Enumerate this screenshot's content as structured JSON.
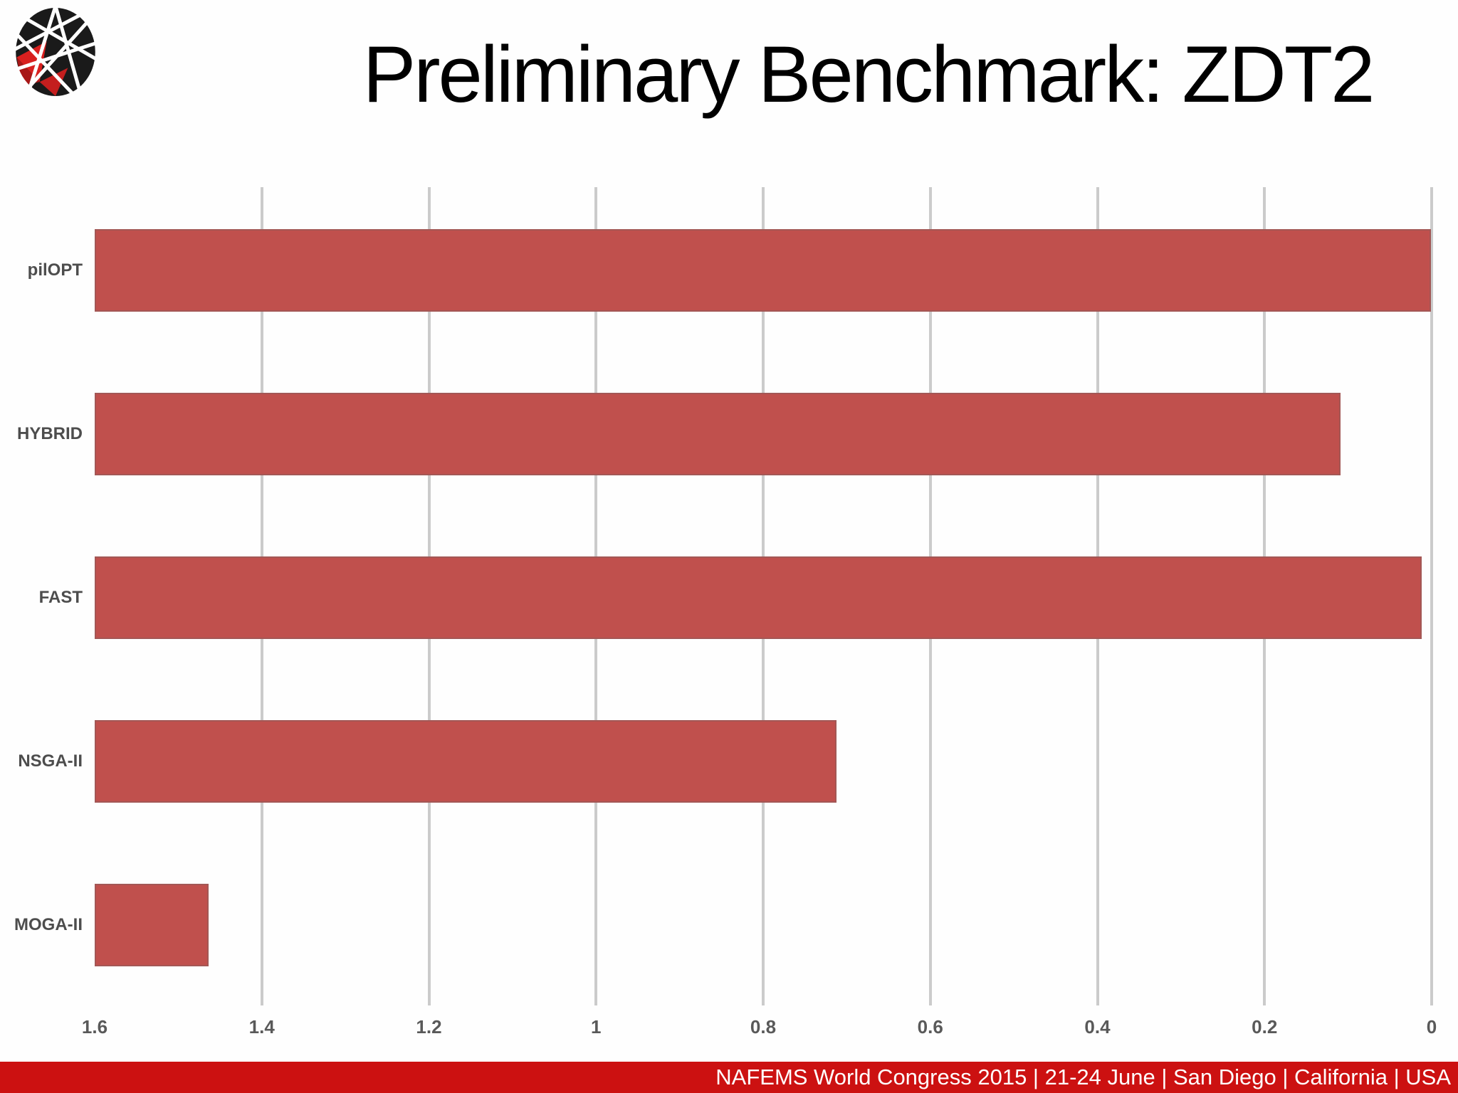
{
  "slide": {
    "title": "Preliminary Benchmark: ZDT2",
    "footer": "NAFEMS World Congress 2015  | 21-24 June | San Diego | California | USA",
    "logo": "esteco-sphere-logo"
  },
  "colors": {
    "bar": "#C0504D",
    "gridline": "#CBCBCB",
    "title_text": "#000000",
    "category_text": "#4D4D4D",
    "tick_text": "#595959",
    "footer_bg": "#CC1111",
    "footer_text": "#FFFFFF",
    "logo_black": "#1A1A1A",
    "logo_red": "#D8201F"
  },
  "chart_data": {
    "type": "bar",
    "orientation": "horizontal",
    "title": "",
    "xlabel": "",
    "ylabel": "",
    "grid": true,
    "legend": false,
    "categories": [
      "pilOPT",
      "HYBRID",
      "FAST",
      "NSGA-II",
      "MOGA-II"
    ],
    "values": [
      0.001,
      0.109,
      0.012,
      0.712,
      1.464
    ],
    "axis": {
      "min": 0,
      "max": 1.6,
      "reversed": true,
      "tick_step": 0.2,
      "tick_labels": [
        "1.6",
        "1.4",
        "1.2",
        "1",
        "0.8",
        "0.6",
        "0.4",
        "0.2",
        "0"
      ],
      "gridline_ticks": [
        1.4,
        1.2,
        1.0,
        0.8,
        0.6,
        0.4,
        0.2,
        0
      ]
    }
  }
}
